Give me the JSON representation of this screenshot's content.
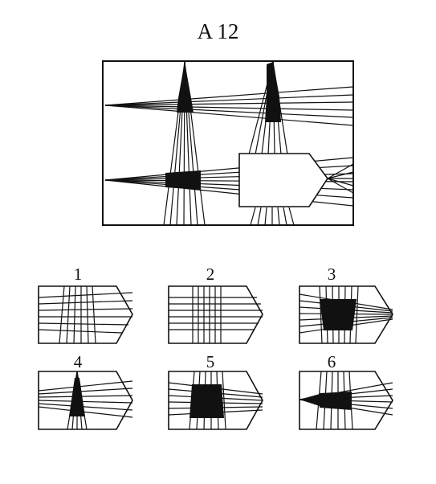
{
  "puzzle": {
    "title": "A 12",
    "options": [
      {
        "label": "1"
      },
      {
        "label": "2"
      },
      {
        "label": "3"
      },
      {
        "label": "4"
      },
      {
        "label": "5"
      },
      {
        "label": "6"
      }
    ]
  }
}
